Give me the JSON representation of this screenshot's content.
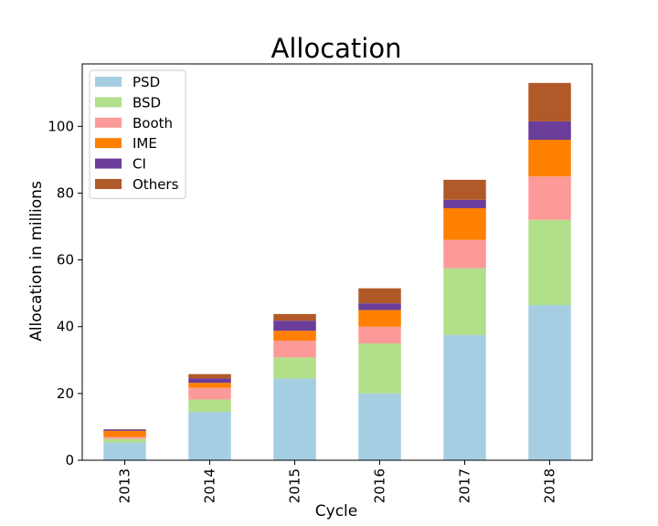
{
  "chart_data": {
    "type": "bar",
    "stacked": true,
    "title": "Allocation",
    "xlabel": "Cycle",
    "ylabel": "Allocation in millions",
    "categories": [
      "2013",
      "2014",
      "2015",
      "2016",
      "2017",
      "2018"
    ],
    "yticks": [
      0,
      20,
      40,
      60,
      80,
      100
    ],
    "ylim": [
      0,
      118.7
    ],
    "grid": false,
    "legend_position": "top-left",
    "series": [
      {
        "name": "PSD",
        "color": "#a6cee3",
        "values": [
          5.3,
          14.5,
          24.5,
          20.0,
          37.5,
          46.5
        ]
      },
      {
        "name": "BSD",
        "color": "#b2df8a",
        "values": [
          1.1,
          3.7,
          6.3,
          15.0,
          20.0,
          25.5
        ]
      },
      {
        "name": "Booth",
        "color": "#fb9a99",
        "values": [
          0.6,
          3.5,
          5.0,
          5.0,
          8.5,
          13.0
        ]
      },
      {
        "name": "IME",
        "color": "#ff7f00",
        "values": [
          1.8,
          1.5,
          3.0,
          5.0,
          9.5,
          11.0
        ]
      },
      {
        "name": "CI",
        "color": "#6a3d9a",
        "values": [
          0.4,
          1.3,
          3.0,
          2.0,
          2.5,
          5.5
        ]
      },
      {
        "name": "Others",
        "color": "#b15928",
        "values": [
          0.1,
          1.3,
          2.0,
          4.5,
          6.0,
          11.5
        ]
      }
    ]
  }
}
